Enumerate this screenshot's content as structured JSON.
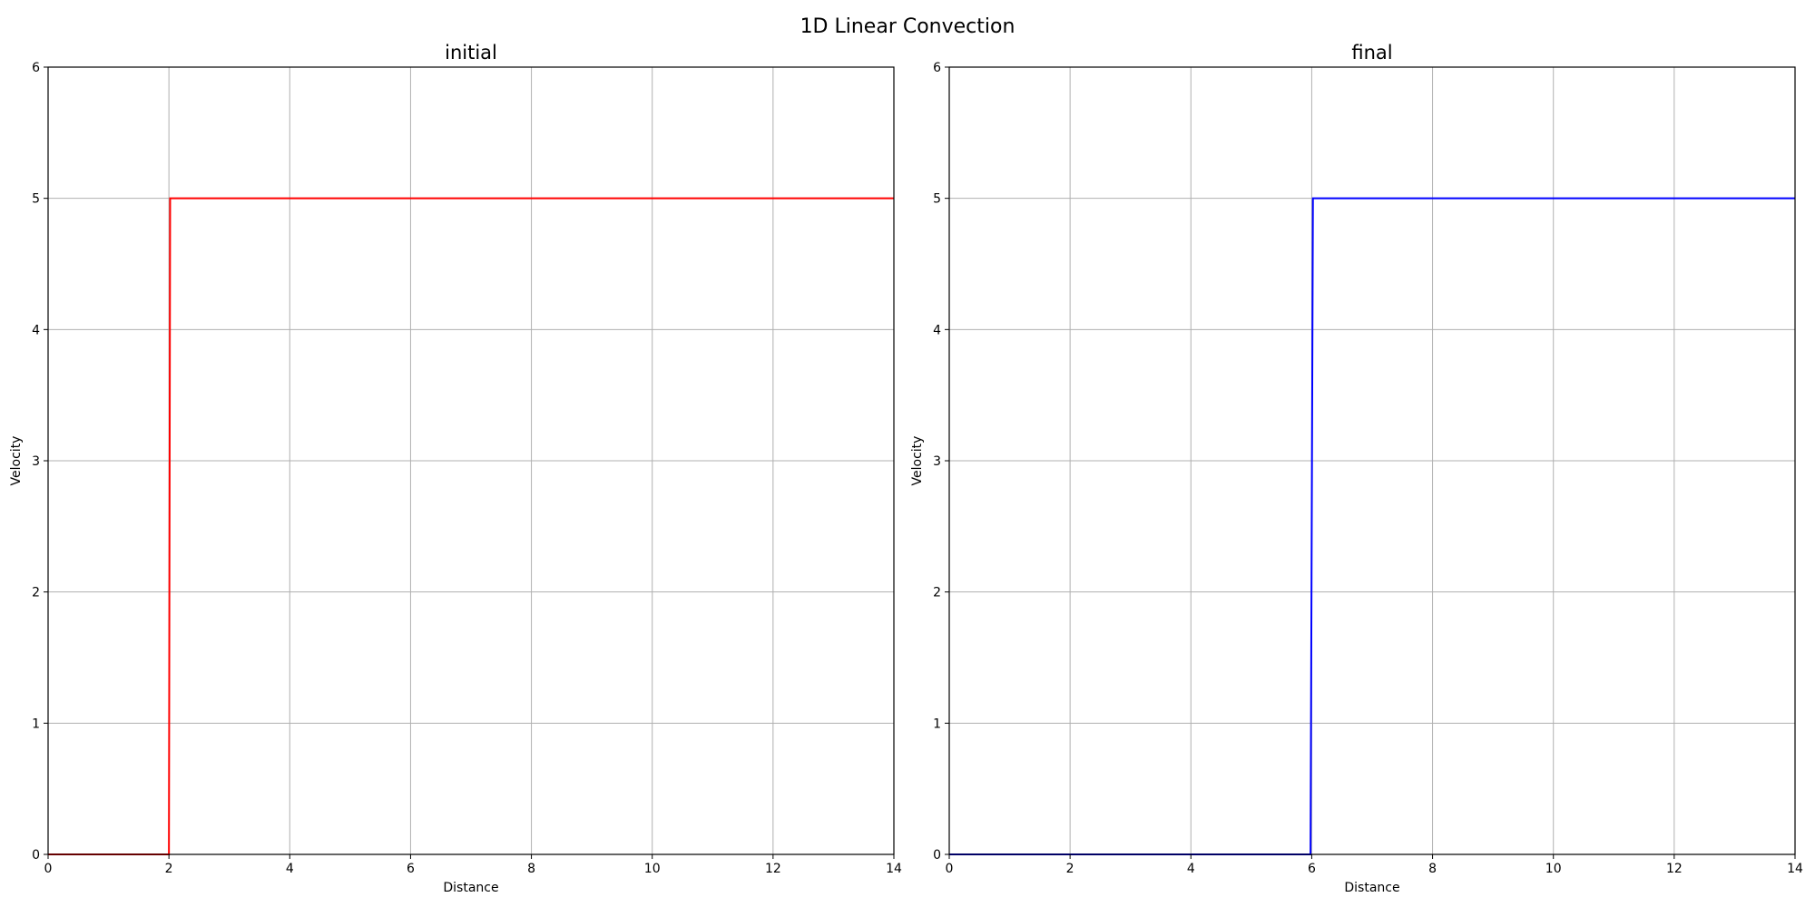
{
  "figure": {
    "suptitle": "1D Linear Convection"
  },
  "chart_data": [
    {
      "type": "line",
      "title": "initial",
      "xlabel": "Distance",
      "ylabel": "Velocity",
      "xlim": [
        0,
        14
      ],
      "ylim": [
        0,
        6
      ],
      "xticks": [
        "0",
        "2",
        "4",
        "6",
        "8",
        "10",
        "12",
        "14"
      ],
      "yticks": [
        "0",
        "1",
        "2",
        "3",
        "4",
        "5",
        "6"
      ],
      "grid": true,
      "series": [
        {
          "color": "#ff0000",
          "x": [
            0,
            2,
            2.02,
            14
          ],
          "y": [
            0,
            0,
            5,
            5
          ]
        }
      ]
    },
    {
      "type": "line",
      "title": "final",
      "xlabel": "Distance",
      "ylabel": "Velocity",
      "xlim": [
        0,
        14
      ],
      "ylim": [
        0,
        6
      ],
      "xticks": [
        "0",
        "2",
        "4",
        "6",
        "8",
        "10",
        "12",
        "14"
      ],
      "yticks": [
        "0",
        "1",
        "2",
        "3",
        "4",
        "5",
        "6"
      ],
      "grid": true,
      "series": [
        {
          "color": "#0000ff",
          "x": [
            0,
            5.98,
            6.02,
            14
          ],
          "y": [
            0,
            0,
            5,
            5
          ]
        }
      ]
    }
  ]
}
